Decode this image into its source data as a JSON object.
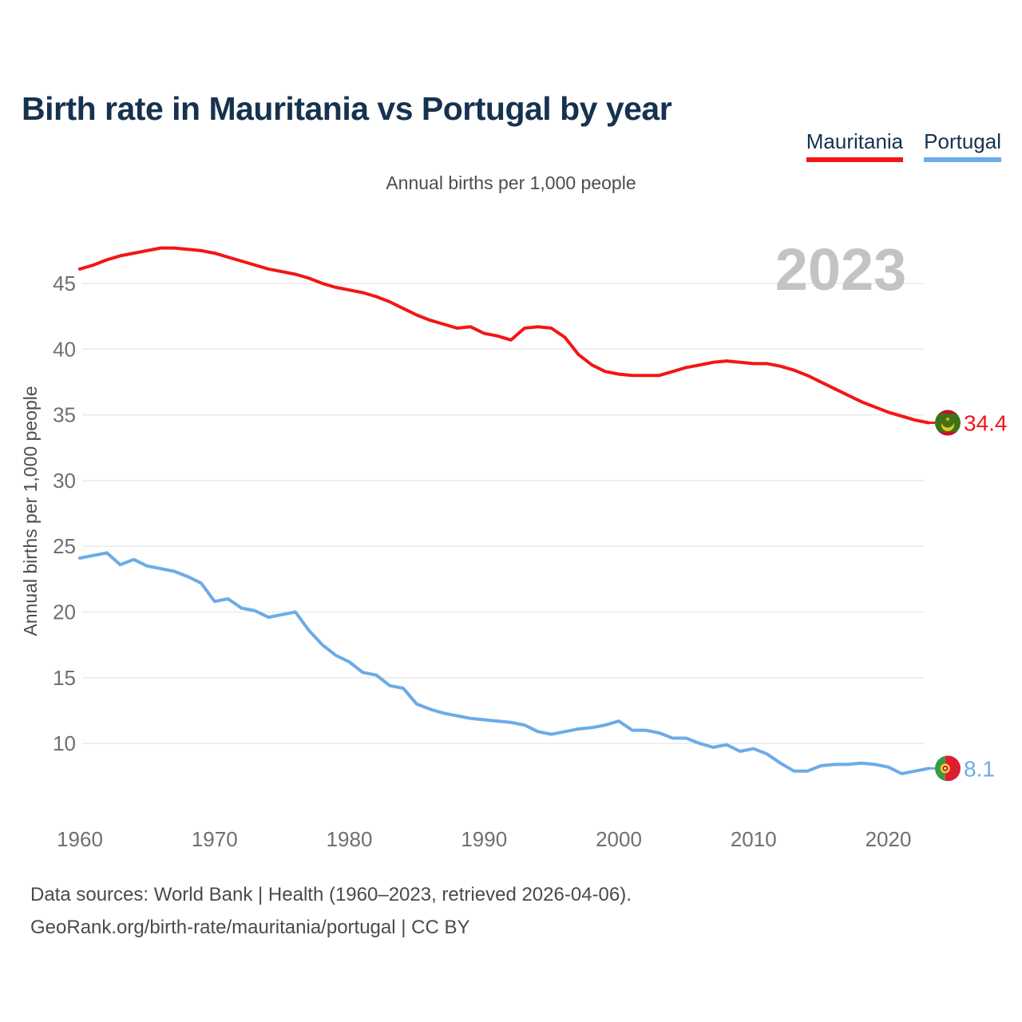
{
  "footer": {
    "line1": "Data sources: World Bank | Health (1960–2023, retrieved 2026-04-06).",
    "line2": "GeoRank.org/birth-rate/mauritania/portugal | CC BY"
  },
  "colors": {
    "title": "#16324f",
    "tick_text": "#6f6f6f",
    "axis_label_text": "#4d4d4d",
    "gridline": "#eaeaea",
    "watermark_text": "#c3c3c3",
    "mauritania_red": "#f21616",
    "portugal_blue": "#6cabe8"
  },
  "chart_data": {
    "type": "line",
    "title": "Birth rate in Mauritania vs Portugal by year",
    "subtitle": "Annual births per 1,000 people",
    "ylabel": "Annual births per 1,000 people",
    "xlabel": "",
    "watermark": "2023",
    "grid": true,
    "legend_position": "top-right",
    "xlim": [
      1960,
      2023
    ],
    "ylim": [
      6.5,
      48.5
    ],
    "xticks": [
      1960,
      1970,
      1980,
      1990,
      2000,
      2010,
      2020
    ],
    "yticks": [
      10,
      15,
      20,
      25,
      30,
      35,
      40,
      45
    ],
    "x": [
      1960,
      1961,
      1962,
      1963,
      1964,
      1965,
      1966,
      1967,
      1968,
      1969,
      1970,
      1971,
      1972,
      1973,
      1974,
      1975,
      1976,
      1977,
      1978,
      1979,
      1980,
      1981,
      1982,
      1983,
      1984,
      1985,
      1986,
      1987,
      1988,
      1989,
      1990,
      1991,
      1992,
      1993,
      1994,
      1995,
      1996,
      1997,
      1998,
      1999,
      2000,
      2001,
      2002,
      2003,
      2004,
      2005,
      2006,
      2007,
      2008,
      2009,
      2010,
      2011,
      2012,
      2013,
      2014,
      2015,
      2016,
      2017,
      2018,
      2019,
      2020,
      2021,
      2022,
      2023
    ],
    "series": [
      {
        "name": "Mauritania",
        "color": "#f21616",
        "end_label": "34.4",
        "flag": "mauritania",
        "values": [
          46.1,
          46.4,
          46.8,
          47.1,
          47.3,
          47.5,
          47.7,
          47.7,
          47.6,
          47.5,
          47.3,
          47.0,
          46.7,
          46.4,
          46.1,
          45.9,
          45.7,
          45.4,
          45.0,
          44.7,
          44.5,
          44.3,
          44.0,
          43.6,
          43.1,
          42.6,
          42.2,
          41.9,
          41.6,
          41.7,
          41.2,
          41.0,
          40.7,
          41.6,
          41.7,
          41.6,
          40.9,
          39.6,
          38.8,
          38.3,
          38.1,
          38.0,
          38.0,
          38.0,
          38.3,
          38.6,
          38.8,
          39.0,
          39.1,
          39.0,
          38.9,
          38.9,
          38.7,
          38.4,
          38.0,
          37.5,
          37.0,
          36.5,
          36.0,
          35.6,
          35.2,
          34.9,
          34.6,
          34.4
        ]
      },
      {
        "name": "Portugal",
        "color": "#6cabe8",
        "end_label": "8.1",
        "flag": "portugal",
        "values": [
          24.1,
          24.3,
          24.5,
          23.6,
          24.0,
          23.5,
          23.3,
          23.1,
          22.7,
          22.2,
          20.8,
          21.0,
          20.3,
          20.1,
          19.6,
          19.8,
          20.0,
          18.6,
          17.5,
          16.7,
          16.2,
          15.4,
          15.2,
          14.4,
          14.2,
          13.0,
          12.6,
          12.3,
          12.1,
          11.9,
          11.8,
          11.7,
          11.6,
          11.4,
          10.9,
          10.7,
          10.9,
          11.1,
          11.2,
          11.4,
          11.7,
          11.0,
          11.0,
          10.8,
          10.4,
          10.4,
          10.0,
          9.7,
          9.9,
          9.4,
          9.6,
          9.2,
          8.5,
          7.9,
          7.9,
          8.3,
          8.4,
          8.4,
          8.5,
          8.4,
          8.2,
          7.7,
          7.9,
          8.1
        ]
      }
    ]
  }
}
